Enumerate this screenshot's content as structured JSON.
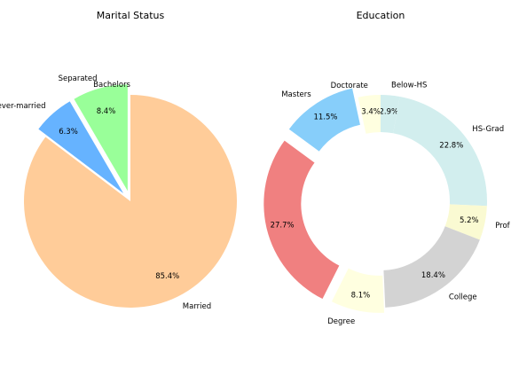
{
  "chart_data": [
    {
      "type": "pie",
      "title": "Marital Status",
      "start_angle_deg": 90,
      "direction": "clockwise",
      "slices": [
        {
          "label": "Married",
          "value": 85.4,
          "pct_label": "85.4%",
          "color": "#ffcc99",
          "explode": 0.0
        },
        {
          "label": "Never-married",
          "value": 6.3,
          "pct_label": "6.3%",
          "color": "#66b3ff",
          "explode": 0.1
        },
        {
          "label": "Separated",
          "value": 8.4,
          "pct_label": "8.4%",
          "color": "#99ff99",
          "explode": 0.1
        },
        {
          "label": "Bachelors",
          "value": 0,
          "pct_label": "",
          "color": "#ffcc99",
          "explode": 0.0
        }
      ]
    },
    {
      "type": "pie",
      "subtype": "donut",
      "title": "Education",
      "start_angle_deg": 90,
      "direction": "clockwise",
      "slices": [
        {
          "label": "Below-HS",
          "value": 2.9,
          "pct_label": "2.9%",
          "color": "#d2eeee",
          "explode": 0.0
        },
        {
          "label": "HS-Grad",
          "value": 22.8,
          "pct_label": "22.8%",
          "color": "#d2eeee",
          "explode": 0.0
        },
        {
          "label": "Prof",
          "value": 5.2,
          "pct_label": "5.2%",
          "color": "#fafad2",
          "explode": 0.0
        },
        {
          "label": "College",
          "value": 18.4,
          "pct_label": "18.4%",
          "color": "#d3d3d3",
          "explode": 0.0
        },
        {
          "label": "Degree",
          "value": 8.1,
          "pct_label": "8.1%",
          "color": "#ffffe0",
          "explode": 0.05
        },
        {
          "label": "",
          "value": 27.7,
          "pct_label": "27.7%",
          "color": "#f08080",
          "explode": 0.1
        },
        {
          "label": "Masters",
          "value": 11.5,
          "pct_label": "11.5%",
          "color": "#87cefa",
          "explode": 0.1
        },
        {
          "label": "Doctorate",
          "value": 3.4,
          "pct_label": "3.4%",
          "color": "#ffffe0",
          "explode": 0.0
        }
      ]
    }
  ]
}
